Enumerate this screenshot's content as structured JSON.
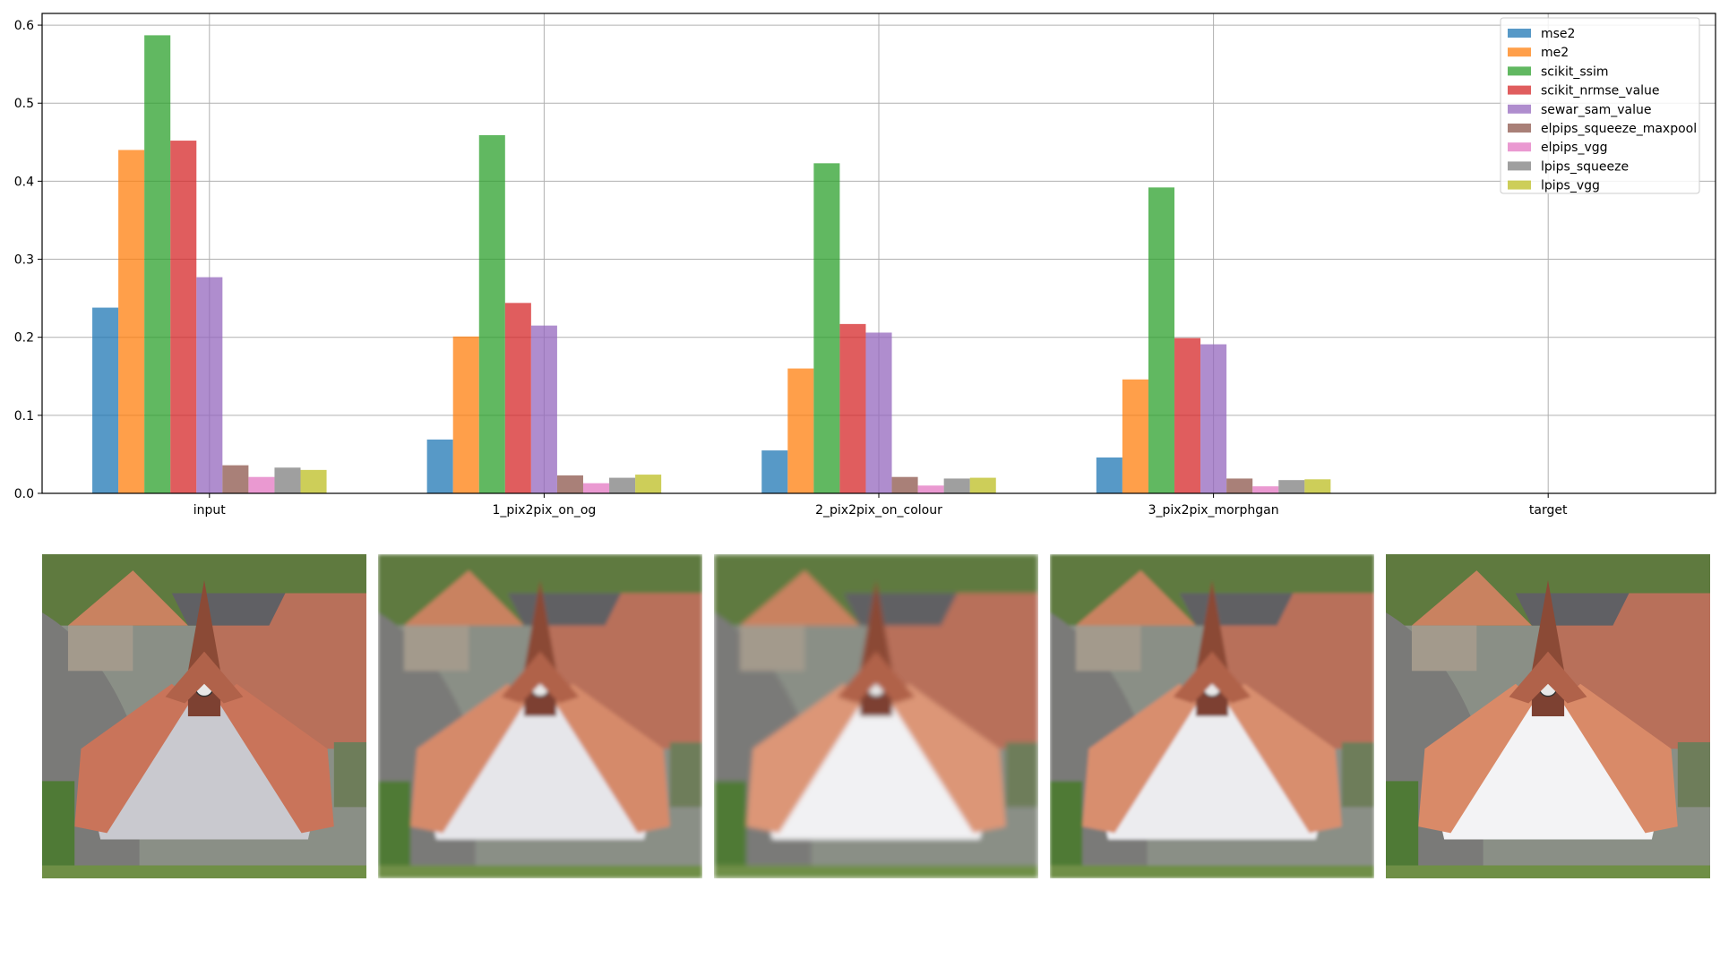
{
  "chart_data": {
    "type": "bar",
    "categories": [
      "input",
      "1_pix2pix_on_og",
      "2_pix2pix_on_colour",
      "3_pix2pix_morphgan",
      "target"
    ],
    "ylim": [
      0,
      0.615
    ],
    "yticks": [
      "0.0",
      "0.1",
      "0.2",
      "0.3",
      "0.4",
      "0.5",
      "0.6"
    ],
    "grid": true,
    "legend_position": "top-right",
    "series": [
      {
        "name": "mse2",
        "color": "#1f77b4",
        "values": [
          0.238,
          0.069,
          0.055,
          0.046,
          0
        ]
      },
      {
        "name": "me2",
        "color": "#ff7f0e",
        "values": [
          0.44,
          0.201,
          0.16,
          0.146,
          0
        ]
      },
      {
        "name": "scikit_ssim",
        "color": "#2ca02c",
        "values": [
          0.587,
          0.459,
          0.423,
          0.392,
          0
        ]
      },
      {
        "name": "scikit_nrmse_value",
        "color": "#d62728",
        "values": [
          0.452,
          0.244,
          0.217,
          0.199,
          0
        ]
      },
      {
        "name": "sewar_sam_value",
        "color": "#9467bd",
        "values": [
          0.277,
          0.215,
          0.206,
          0.191,
          0
        ]
      },
      {
        "name": "elpips_squeeze_maxpool",
        "color": "#8c564b",
        "values": [
          0.036,
          0.023,
          0.021,
          0.019,
          0
        ]
      },
      {
        "name": "elpips_vgg",
        "color": "#e377c2",
        "values": [
          0.021,
          0.013,
          0.01,
          0.009,
          0
        ]
      },
      {
        "name": "lpips_squeeze",
        "color": "#7f7f7f",
        "values": [
          0.033,
          0.02,
          0.019,
          0.017,
          0
        ]
      },
      {
        "name": "lpips_vgg",
        "color": "#bcbd22",
        "values": [
          0.03,
          0.024,
          0.02,
          0.018,
          0
        ]
      }
    ]
  },
  "images": [
    {
      "name": "input-image",
      "variant": "input"
    },
    {
      "name": "pix2pix-og-image",
      "variant": "pix2pix_on_og"
    },
    {
      "name": "pix2pix-colour-image",
      "variant": "pix2pix_on_colour"
    },
    {
      "name": "pix2pix-morphgan-image",
      "variant": "pix2pix_morphgan"
    },
    {
      "name": "target-image",
      "variant": "target"
    }
  ]
}
